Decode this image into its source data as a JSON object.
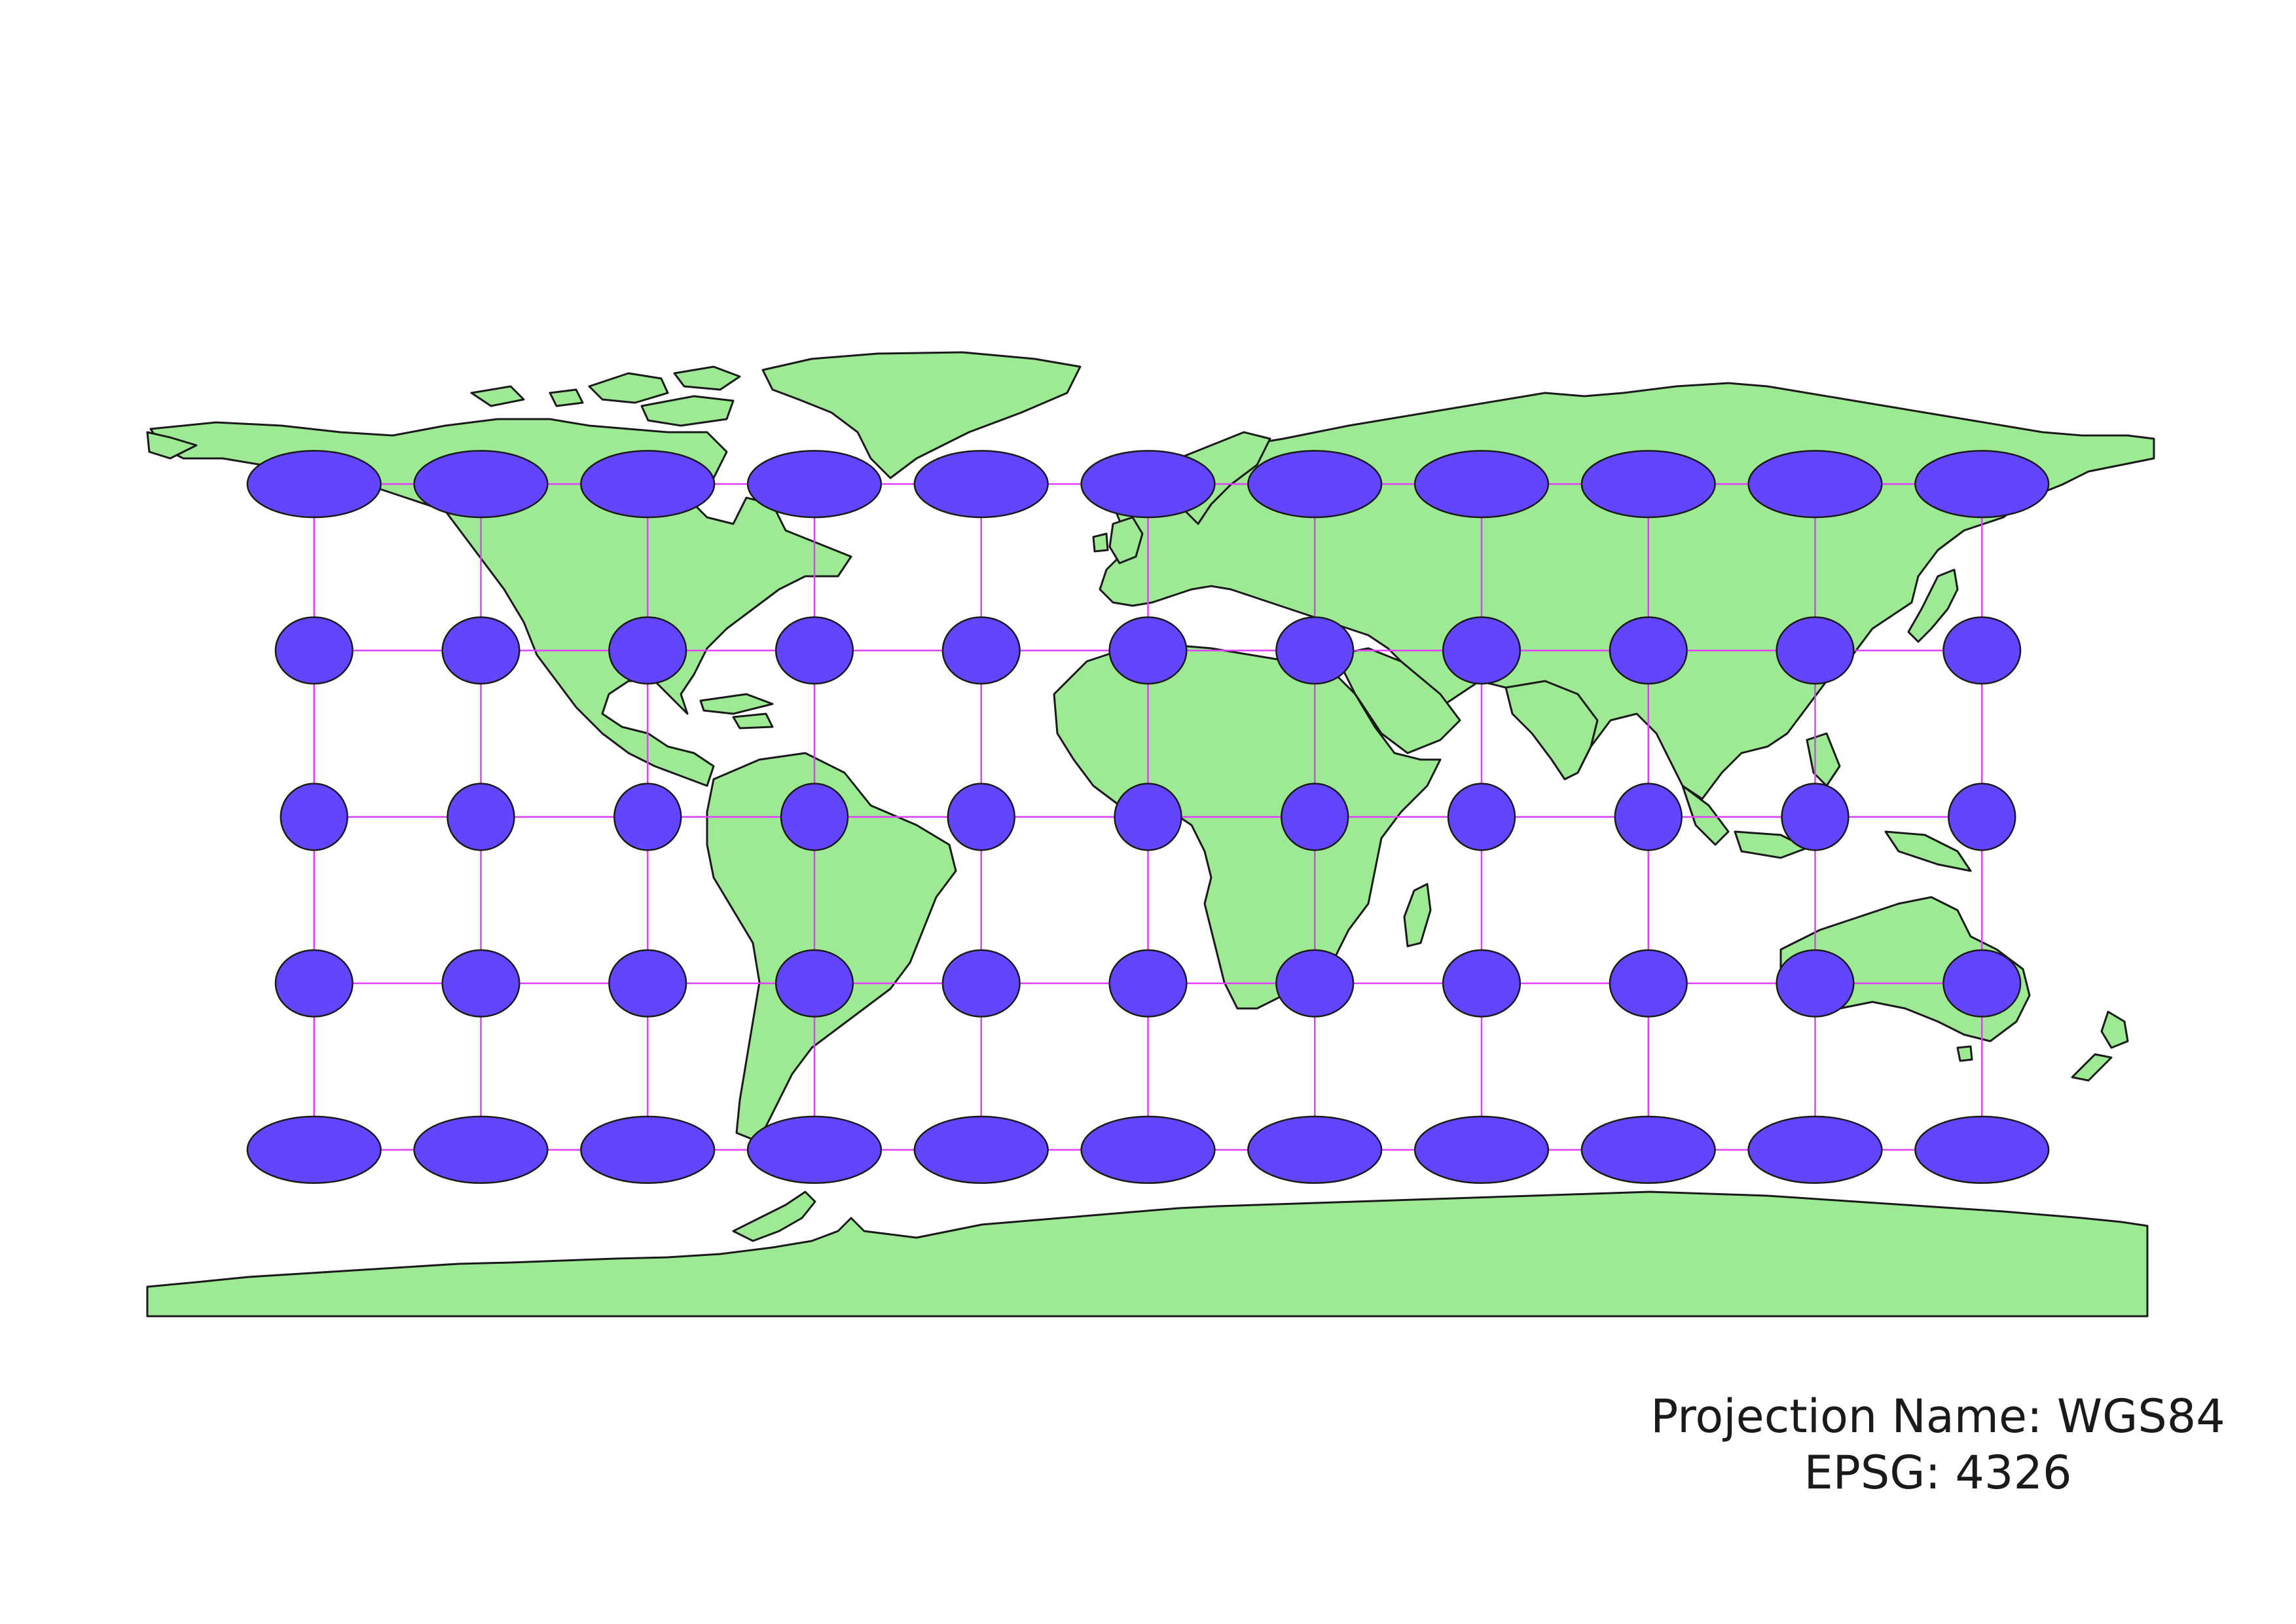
{
  "map": {
    "projection_label": "Projection Name: WGS84",
    "epsg_label": "EPSG: 4326",
    "extent": {
      "lon": [
        -180,
        180
      ],
      "lat": [
        -90,
        90
      ]
    },
    "graticule": {
      "longitudes": [
        -150,
        -120,
        -90,
        -60,
        -30,
        0,
        30,
        60,
        90,
        120,
        150
      ],
      "latitudes": [
        60,
        30,
        0,
        -30,
        -60
      ]
    },
    "tissot_indicatrix": {
      "shown": true,
      "circle_radius_deg": 6
    },
    "colors": {
      "land": "#9de994",
      "coastline": "#1a1a1a",
      "indicatrix": "#6145ff",
      "graticule": "#e040fb",
      "background": "#ffffff"
    }
  }
}
